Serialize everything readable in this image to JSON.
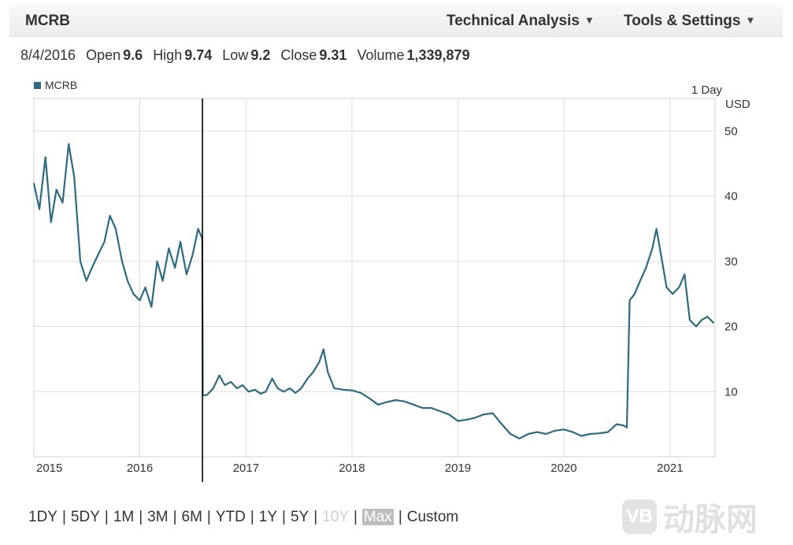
{
  "header": {
    "ticker": "MCRB",
    "menus": [
      {
        "label": "Technical Analysis"
      },
      {
        "label": "Tools & Settings"
      }
    ]
  },
  "quote": {
    "date": "8/4/2016",
    "open_label": "Open",
    "open": "9.6",
    "high_label": "High",
    "high": "9.74",
    "low_label": "Low",
    "low": "9.2",
    "close_label": "Close",
    "close": "9.31",
    "volume_label": "Volume",
    "volume": "1,339,879"
  },
  "chart_data": {
    "type": "line",
    "title": "",
    "legend": {
      "entries": [
        "MCRB"
      ],
      "placement": "top-left"
    },
    "interval_label": "1 Day",
    "currency_label": "USD",
    "x_range": [
      "2015-01-01",
      "2021-06-05"
    ],
    "ylim": [
      0,
      55
    ],
    "y_ticks": [
      10,
      20,
      30,
      40,
      50
    ],
    "x_ticks": [
      {
        "label": "2015",
        "date": "2015-01-01"
      },
      {
        "label": "2016",
        "date": "2016-01-01"
      },
      {
        "label": "2017",
        "date": "2017-01-01"
      },
      {
        "label": "2018",
        "date": "2018-01-01"
      },
      {
        "label": "2019",
        "date": "2019-01-01"
      },
      {
        "label": "2020",
        "date": "2020-01-01"
      },
      {
        "label": "2021",
        "date": "2021-01-01"
      }
    ],
    "grid": true,
    "cursor_date": "2016-08-04",
    "color": "#2e6a80",
    "series": [
      {
        "name": "MCRB",
        "x": [
          "2015-01-01",
          "2015-01-20",
          "2015-02-10",
          "2015-03-01",
          "2015-03-20",
          "2015-04-10",
          "2015-05-01",
          "2015-05-20",
          "2015-06-10",
          "2015-07-01",
          "2015-07-20",
          "2015-08-10",
          "2015-09-01",
          "2015-09-20",
          "2015-10-10",
          "2015-11-01",
          "2015-11-20",
          "2015-12-10",
          "2016-01-01",
          "2016-01-20",
          "2016-02-10",
          "2016-03-01",
          "2016-03-20",
          "2016-04-10",
          "2016-05-01",
          "2016-05-20",
          "2016-06-10",
          "2016-07-01",
          "2016-07-20",
          "2016-08-03",
          "2016-08-05",
          "2016-08-20",
          "2016-09-10",
          "2016-10-01",
          "2016-10-20",
          "2016-11-10",
          "2016-12-01",
          "2016-12-20",
          "2017-01-10",
          "2017-02-01",
          "2017-02-20",
          "2017-03-10",
          "2017-04-01",
          "2017-04-20",
          "2017-05-10",
          "2017-06-01",
          "2017-06-20",
          "2017-07-10",
          "2017-08-01",
          "2017-08-20",
          "2017-09-10",
          "2017-09-25",
          "2017-10-10",
          "2017-11-01",
          "2017-12-01",
          "2018-01-01",
          "2018-02-01",
          "2018-03-01",
          "2018-04-01",
          "2018-05-01",
          "2018-06-01",
          "2018-07-01",
          "2018-08-01",
          "2018-09-01",
          "2018-10-01",
          "2018-11-01",
          "2018-12-01",
          "2019-01-01",
          "2019-02-01",
          "2019-03-01",
          "2019-04-01",
          "2019-05-01",
          "2019-06-01",
          "2019-07-01",
          "2019-08-01",
          "2019-09-01",
          "2019-10-01",
          "2019-11-01",
          "2019-12-01",
          "2020-01-01",
          "2020-02-01",
          "2020-03-01",
          "2020-04-01",
          "2020-05-01",
          "2020-06-01",
          "2020-07-01",
          "2020-07-25",
          "2020-08-05",
          "2020-08-15",
          "2020-09-01",
          "2020-09-20",
          "2020-10-10",
          "2020-11-01",
          "2020-11-15",
          "2020-12-01",
          "2020-12-20",
          "2021-01-10",
          "2021-02-01",
          "2021-02-20",
          "2021-03-10",
          "2021-04-01",
          "2021-04-20",
          "2021-05-10",
          "2021-06-01"
        ],
        "y": [
          42,
          38,
          46,
          36,
          41,
          39,
          48,
          43,
          30,
          27,
          29,
          31,
          33,
          37,
          35,
          30,
          27,
          25,
          24,
          26,
          23,
          30,
          27,
          32,
          29,
          33,
          28,
          31,
          35,
          33.5,
          9.4,
          9.5,
          10.5,
          12.5,
          11,
          11.5,
          10.5,
          11,
          10,
          10.3,
          9.7,
          10,
          12,
          10.5,
          10,
          10.5,
          9.8,
          10.5,
          12,
          13,
          14.5,
          16.5,
          13,
          10.5,
          10.3,
          10.2,
          9.8,
          9,
          8,
          8.4,
          8.7,
          8.5,
          8,
          7.5,
          7.5,
          7,
          6.5,
          5.5,
          5.7,
          6,
          6.5,
          6.7,
          5,
          3.5,
          2.8,
          3.5,
          3.8,
          3.5,
          4,
          4.2,
          3.8,
          3.2,
          3.5,
          3.6,
          3.8,
          5,
          4.8,
          4.5,
          24,
          25,
          27,
          29,
          32,
          35,
          31,
          26,
          25,
          26,
          28,
          21,
          20,
          21,
          21.5,
          20.5
        ]
      }
    ]
  },
  "range_selector": {
    "options": [
      {
        "label": "1DY",
        "state": "normal"
      },
      {
        "label": "5DY",
        "state": "normal"
      },
      {
        "label": "1M",
        "state": "normal"
      },
      {
        "label": "3M",
        "state": "normal"
      },
      {
        "label": "6M",
        "state": "normal"
      },
      {
        "label": "YTD",
        "state": "normal"
      },
      {
        "label": "1Y",
        "state": "normal"
      },
      {
        "label": "5Y",
        "state": "normal"
      },
      {
        "label": "10Y",
        "state": "disabled"
      },
      {
        "label": "Max",
        "state": "active"
      },
      {
        "label": "Custom",
        "state": "normal"
      }
    ]
  },
  "watermark": {
    "badge": "VB",
    "text": "动脉网"
  }
}
